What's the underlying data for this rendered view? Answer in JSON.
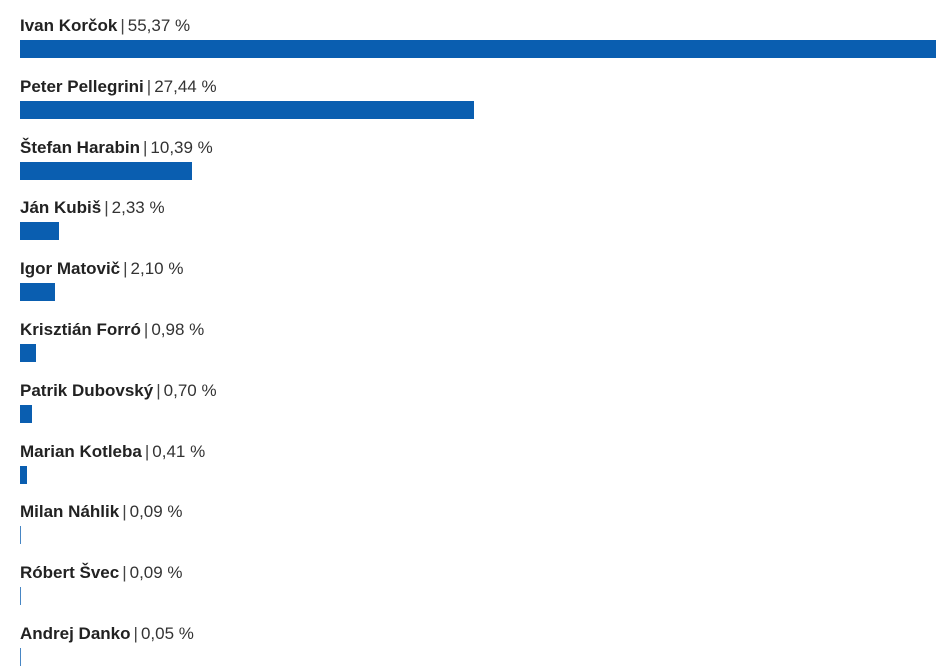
{
  "chart_data": {
    "type": "bar",
    "orientation": "horizontal",
    "bar_color": "#0a5eb0",
    "unit": "%",
    "xlim": [
      0,
      55.37
    ],
    "categories": [
      "Ivan Korčok",
      "Peter Pellegrini",
      "Štefan Harabin",
      "Ján Kubiš",
      "Igor Matovič",
      "Krisztián Forró",
      "Patrik Dubovský",
      "Marian Kotleba",
      "Milan Náhlik",
      "Róbert Švec",
      "Andrej Danko"
    ],
    "values": [
      55.37,
      27.44,
      10.39,
      2.33,
      2.1,
      0.98,
      0.7,
      0.41,
      0.09,
      0.09,
      0.05
    ],
    "value_labels": [
      "55,37 %",
      "27,44 %",
      "10,39 %",
      "2,33 %",
      "2,10 %",
      "0,98 %",
      "0,70 %",
      "0,41 %",
      "0,09 %",
      "0,09 %",
      "0,05 %"
    ],
    "separator": "|"
  }
}
